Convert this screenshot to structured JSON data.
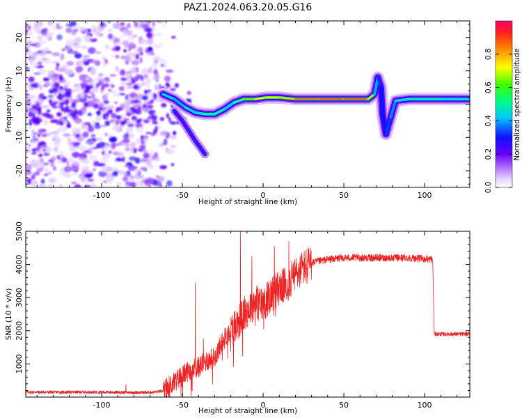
{
  "title": "PAZ1.2024.063.20.05.G16",
  "colors": {
    "snr_line": "#ee2222",
    "spectrum_scale": [
      "#ffffff",
      "#e8d8ff",
      "#c9a6ff",
      "#9b4dff",
      "#6a00ff",
      "#1a1aff",
      "#00bfff",
      "#00ff66",
      "#ffff00",
      "#ff6600",
      "#ff0066"
    ]
  },
  "chart_data": [
    {
      "type": "heatmap",
      "name": "spectrogram",
      "xlabel": "Height of straight line (km)",
      "ylabel": "Frequency (Hz)",
      "xlim": [
        -147,
        128
      ],
      "ylim": [
        -25,
        25
      ],
      "x_ticks": [
        -100,
        -50,
        0,
        50,
        100
      ],
      "y_ticks": [
        -20,
        -10,
        0,
        10,
        20
      ],
      "colorbar": {
        "label": "Normalized spectral amplitude",
        "range": [
          0,
          1
        ],
        "ticks": [
          "0.0",
          "0.2",
          "0.4",
          "0.6",
          "0.8"
        ]
      },
      "ridge": [
        {
          "x": -62,
          "y": 3.0,
          "amp": 0.45
        },
        {
          "x": -55,
          "y": 1.5,
          "amp": 0.4
        },
        {
          "x": -48,
          "y": -1.0,
          "amp": 0.4
        },
        {
          "x": -42,
          "y": -2.5,
          "amp": 0.45
        },
        {
          "x": -36,
          "y": -3.0,
          "amp": 0.45
        },
        {
          "x": -30,
          "y": -3.0,
          "amp": 0.55
        },
        {
          "x": -24,
          "y": -1.5,
          "amp": 0.4
        },
        {
          "x": -18,
          "y": 0.5,
          "amp": 0.45
        },
        {
          "x": -12,
          "y": 1.5,
          "amp": 0.55
        },
        {
          "x": -5,
          "y": 1.5,
          "amp": 0.7
        },
        {
          "x": 2,
          "y": 2.0,
          "amp": 0.75
        },
        {
          "x": 10,
          "y": 2.0,
          "amp": 0.7
        },
        {
          "x": 20,
          "y": 1.5,
          "amp": 0.85
        },
        {
          "x": 35,
          "y": 1.5,
          "amp": 0.9
        },
        {
          "x": 50,
          "y": 1.5,
          "amp": 0.9
        },
        {
          "x": 65,
          "y": 1.5,
          "amp": 0.9
        },
        {
          "x": 69,
          "y": 3.0,
          "amp": 0.45
        },
        {
          "x": 71,
          "y": 8.0,
          "amp": 0.35
        },
        {
          "x": 73,
          "y": 5.0,
          "amp": 0.3
        },
        {
          "x": 74,
          "y": -3.0,
          "amp": 0.3
        },
        {
          "x": 76,
          "y": -9.0,
          "amp": 0.3
        },
        {
          "x": 79,
          "y": -4.0,
          "amp": 0.35
        },
        {
          "x": 82,
          "y": 1.0,
          "amp": 0.4
        },
        {
          "x": 90,
          "y": 1.5,
          "amp": 0.45
        },
        {
          "x": 100,
          "y": 1.5,
          "amp": 0.5
        },
        {
          "x": 110,
          "y": 1.5,
          "amp": 0.45
        },
        {
          "x": 120,
          "y": 1.5,
          "amp": 0.45
        },
        {
          "x": 128,
          "y": 1.5,
          "amp": 0.45
        }
      ],
      "side_branch": [
        {
          "x": -55,
          "y": -2.0
        },
        {
          "x": -50,
          "y": -5.0
        },
        {
          "x": -46,
          "y": -8.0
        },
        {
          "x": -42,
          "y": -11.0
        },
        {
          "x": -39,
          "y": -13.0
        },
        {
          "x": -36,
          "y": -15.0
        }
      ]
    },
    {
      "type": "line",
      "name": "snr",
      "xlabel": "Height of straight line (km)",
      "ylabel": "SNR (10 * v/v)",
      "xlim": [
        -147,
        128
      ],
      "ylim": [
        0,
        5000
      ],
      "x_ticks": [
        -100,
        -50,
        0,
        50,
        100
      ],
      "y_ticks": [
        1000,
        2000,
        3000,
        4000,
        5000
      ],
      "profile": [
        [
          -147,
          150
        ],
        [
          -100,
          150
        ],
        [
          -85,
          140
        ],
        [
          -70,
          140
        ],
        [
          -62,
          180
        ],
        [
          -55,
          450
        ],
        [
          -50,
          650
        ],
        [
          -45,
          850
        ],
        [
          -40,
          900
        ],
        [
          -35,
          1100
        ],
        [
          -30,
          1200
        ],
        [
          -25,
          1700
        ],
        [
          -20,
          2000
        ],
        [
          -15,
          2300
        ],
        [
          -10,
          2600
        ],
        [
          -5,
          2900
        ],
        [
          0,
          2800
        ],
        [
          5,
          3100
        ],
        [
          10,
          3300
        ],
        [
          15,
          3400
        ],
        [
          20,
          3700
        ],
        [
          25,
          3900
        ],
        [
          30,
          4050
        ],
        [
          40,
          4150
        ],
        [
          50,
          4200
        ],
        [
          70,
          4200
        ],
        [
          90,
          4200
        ],
        [
          105,
          4150
        ],
        [
          106,
          1900
        ],
        [
          128,
          1900
        ]
      ],
      "spikes": [
        [
          -85,
          380
        ],
        [
          -42,
          3450
        ],
        [
          -37,
          1750
        ],
        [
          -14,
          5000
        ],
        [
          -7,
          4250
        ],
        [
          7,
          4550
        ],
        [
          16,
          4700
        ],
        [
          24,
          4300
        ]
      ]
    }
  ]
}
